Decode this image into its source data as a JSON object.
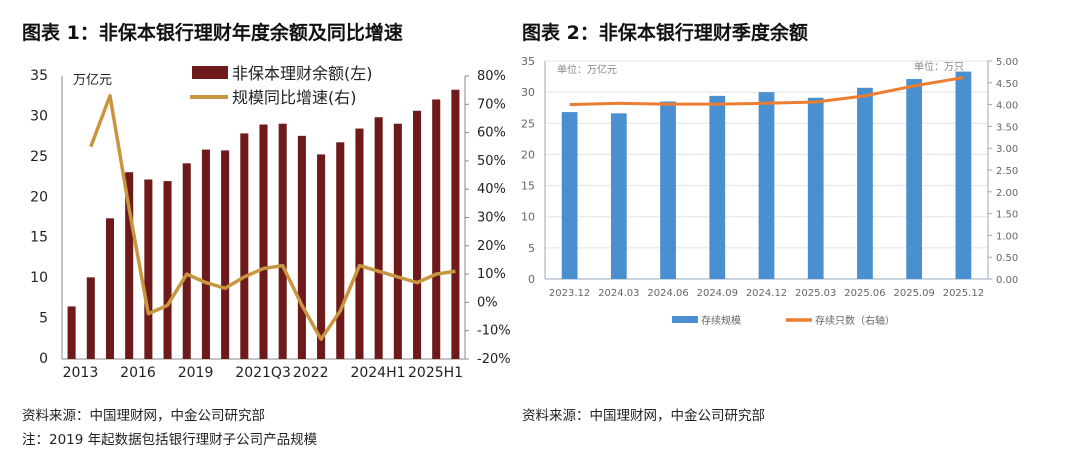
{
  "titles": {
    "chart1": "图表 1：非保本银行理财年度余额及同比增速",
    "chart2": "图表 2：非保本银行理财季度余额"
  },
  "footer": {
    "source1": "资料来源：中国理财网，中金公司研究部",
    "note1": "注：2019 年起数据包括银行理财子公司产品规模",
    "source2": "资料来源：中国理财网，中金公司研究部"
  },
  "chart_data": [
    {
      "type": "bar+line",
      "unit_left": "万亿元",
      "categories": [
        "2013",
        "",
        "",
        "2016",
        "",
        "",
        "2019",
        "",
        "",
        "2021Q3",
        "",
        "",
        "2022",
        "",
        "",
        "2024H1",
        "",
        "",
        "2025H1",
        "",
        ""
      ],
      "series": [
        {
          "name": "非保本理财余额(左)",
          "axis": "left",
          "type": "bar",
          "color": "#6e1a1a",
          "values": [
            6.5,
            10.1,
            17.4,
            23.1,
            22.2,
            22.0,
            24.2,
            25.9,
            25.8,
            27.9,
            29.0,
            29.1,
            27.6,
            25.3,
            26.8,
            28.5,
            29.9,
            29.1,
            30.7,
            32.1,
            33.3
          ]
        },
        {
          "name": "规模同比增速(右)",
          "axis": "right",
          "type": "line",
          "color": "#c8963e",
          "values": [
            null,
            55,
            73,
            33,
            -4,
            -1,
            10,
            7,
            5,
            9,
            12,
            13,
            -1,
            -13,
            -3,
            13,
            11,
            9,
            7,
            10,
            11
          ]
        }
      ],
      "ylim_left": [
        0,
        35
      ],
      "yticks_left": [
        0,
        5,
        10,
        15,
        20,
        25,
        30,
        35
      ],
      "ylim_right": [
        -20,
        80
      ],
      "yticks_right": [
        "-20%",
        "-10%",
        "0%",
        "10%",
        "20%",
        "30%",
        "40%",
        "50%",
        "60%",
        "70%",
        "80%"
      ],
      "legend": "top-center",
      "grid": false
    },
    {
      "type": "bar+line",
      "unit_left": "单位：万亿元",
      "unit_right": "单位：万只",
      "categories": [
        "2023.12",
        "2024.03",
        "2024.06",
        "2024.09",
        "2024.12",
        "2025.03",
        "2025.06",
        "2025.09",
        "2025.12"
      ],
      "series": [
        {
          "name": "存续规模",
          "axis": "left",
          "type": "bar",
          "color": "#4a8fd0",
          "values": [
            26.8,
            26.6,
            28.5,
            29.4,
            30.0,
            29.1,
            30.7,
            32.1,
            33.3
          ]
        },
        {
          "name": "存续只数（右轴）",
          "axis": "right",
          "type": "line",
          "color": "#ed7d31",
          "values": [
            4.0,
            4.03,
            4.01,
            4.01,
            4.03,
            4.06,
            4.2,
            4.43,
            4.62
          ]
        }
      ],
      "ylim_left": [
        0,
        35
      ],
      "yticks_left": [
        0,
        5,
        10,
        15,
        20,
        25,
        30,
        35
      ],
      "ylim_right": [
        0,
        5
      ],
      "yticks_right": [
        "0.00",
        "0.50",
        "1.00",
        "1.50",
        "2.00",
        "2.50",
        "3.00",
        "3.50",
        "4.00",
        "4.50",
        "5.00"
      ],
      "legend": "bottom",
      "grid": true
    }
  ]
}
